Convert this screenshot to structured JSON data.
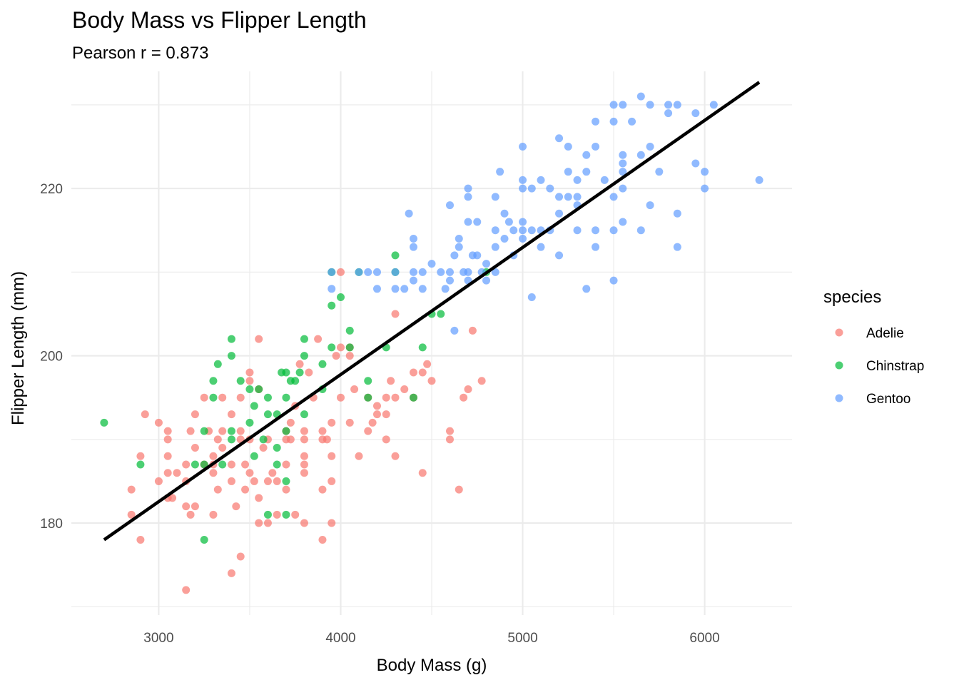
{
  "chart_data": {
    "type": "scatter",
    "title": "Body Mass vs Flipper Length",
    "subtitle": "Pearson r = 0.873",
    "xlabel": "Body Mass (g)",
    "ylabel": "Flipper Length (mm)",
    "xlim": [
      2520,
      6480
    ],
    "ylim": [
      169,
      234
    ],
    "x_ticks": [
      3000,
      4000,
      5000,
      6000
    ],
    "x_tick_labels": [
      "3000",
      "4000",
      "5000",
      "6000"
    ],
    "y_ticks": [
      180,
      200,
      220
    ],
    "y_tick_labels": [
      "180",
      "200",
      "220"
    ],
    "grid": true,
    "legend": {
      "title": "species",
      "position": "right",
      "entries": [
        {
          "name": "Adelie",
          "color": "#F8766D"
        },
        {
          "name": "Chinstrap",
          "color": "#00BA38"
        },
        {
          "name": "Gentoo",
          "color": "#619CFF"
        }
      ]
    },
    "trend_line": {
      "color": "#000000",
      "x": [
        2700,
        6300
      ],
      "y": [
        178.0,
        232.7
      ]
    },
    "series": [
      {
        "name": "Adelie",
        "color": "#F8766D",
        "points": [
          [
            2850,
            181
          ],
          [
            2850,
            184
          ],
          [
            2900,
            178
          ],
          [
            2900,
            188
          ],
          [
            2925,
            193
          ],
          [
            3000,
            185
          ],
          [
            3000,
            192
          ],
          [
            3050,
            183
          ],
          [
            3050,
            186
          ],
          [
            3050,
            188
          ],
          [
            3050,
            190
          ],
          [
            3050,
            191
          ],
          [
            3075,
            183
          ],
          [
            3100,
            186
          ],
          [
            3150,
            172
          ],
          [
            3150,
            182
          ],
          [
            3150,
            185
          ],
          [
            3150,
            187
          ],
          [
            3175,
            181
          ],
          [
            3175,
            191
          ],
          [
            3200,
            182
          ],
          [
            3200,
            189
          ],
          [
            3200,
            193
          ],
          [
            3250,
            187
          ],
          [
            3250,
            195
          ],
          [
            3275,
            191
          ],
          [
            3300,
            181
          ],
          [
            3300,
            186
          ],
          [
            3300,
            187
          ],
          [
            3300,
            188
          ],
          [
            3325,
            184
          ],
          [
            3325,
            190
          ],
          [
            3350,
            195
          ],
          [
            3350,
            189
          ],
          [
            3350,
            191
          ],
          [
            3400,
            174
          ],
          [
            3400,
            185
          ],
          [
            3400,
            187
          ],
          [
            3400,
            193
          ],
          [
            3425,
            182
          ],
          [
            3450,
            176
          ],
          [
            3450,
            190
          ],
          [
            3450,
            195
          ],
          [
            3450,
            191
          ],
          [
            3475,
            184
          ],
          [
            3475,
            187
          ],
          [
            3500,
            186
          ],
          [
            3500,
            190
          ],
          [
            3500,
            198
          ],
          [
            3500,
            197
          ],
          [
            3525,
            185
          ],
          [
            3550,
            180
          ],
          [
            3550,
            183
          ],
          [
            3550,
            202
          ],
          [
            3550,
            196
          ],
          [
            3575,
            189
          ],
          [
            3600,
            180
          ],
          [
            3600,
            185
          ],
          [
            3600,
            190
          ],
          [
            3625,
            186
          ],
          [
            3650,
            185
          ],
          [
            3650,
            181
          ],
          [
            3700,
            187
          ],
          [
            3700,
            190
          ],
          [
            3700,
            184
          ],
          [
            3700,
            191
          ],
          [
            3725,
            190
          ],
          [
            3725,
            192
          ],
          [
            3750,
            181
          ],
          [
            3750,
            194
          ],
          [
            3775,
            199
          ],
          [
            3800,
            180
          ],
          [
            3800,
            186
          ],
          [
            3800,
            187
          ],
          [
            3800,
            188
          ],
          [
            3800,
            190
          ],
          [
            3800,
            191
          ],
          [
            3825,
            198
          ],
          [
            3850,
            195
          ],
          [
            3875,
            202
          ],
          [
            3900,
            178
          ],
          [
            3900,
            184
          ],
          [
            3900,
            190
          ],
          [
            3900,
            191
          ],
          [
            3925,
            190
          ],
          [
            3950,
            180
          ],
          [
            3950,
            185
          ],
          [
            3950,
            188
          ],
          [
            3950,
            192
          ],
          [
            3975,
            200
          ],
          [
            4000,
            195
          ],
          [
            4000,
            201
          ],
          [
            4000,
            210
          ],
          [
            4050,
            192
          ],
          [
            4050,
            200
          ],
          [
            4050,
            201
          ],
          [
            4075,
            196
          ],
          [
            4100,
            188
          ],
          [
            4150,
            191
          ],
          [
            4150,
            195
          ],
          [
            4175,
            192
          ],
          [
            4200,
            194
          ],
          [
            4200,
            193
          ],
          [
            4250,
            190
          ],
          [
            4250,
            195
          ],
          [
            4250,
            193
          ],
          [
            4275,
            197
          ],
          [
            4300,
            188
          ],
          [
            4300,
            195
          ],
          [
            4300,
            205
          ],
          [
            4350,
            196
          ],
          [
            4400,
            195
          ],
          [
            4400,
            198
          ],
          [
            4450,
            186
          ],
          [
            4450,
            198
          ],
          [
            4475,
            199
          ],
          [
            4500,
            197
          ],
          [
            4600,
            190
          ],
          [
            4600,
            191
          ],
          [
            4650,
            184
          ],
          [
            4675,
            195
          ],
          [
            4700,
            196
          ],
          [
            4725,
            203
          ],
          [
            4775,
            197
          ]
        ]
      },
      {
        "name": "Chinstrap",
        "color": "#00BA38",
        "points": [
          [
            2700,
            192
          ],
          [
            2900,
            187
          ],
          [
            3200,
            187
          ],
          [
            3250,
            178
          ],
          [
            3250,
            187
          ],
          [
            3250,
            191
          ],
          [
            3300,
            195
          ],
          [
            3300,
            197
          ],
          [
            3325,
            199
          ],
          [
            3350,
            187
          ],
          [
            3400,
            190
          ],
          [
            3400,
            191
          ],
          [
            3400,
            200
          ],
          [
            3400,
            202
          ],
          [
            3450,
            197
          ],
          [
            3500,
            192
          ],
          [
            3500,
            196
          ],
          [
            3525,
            194
          ],
          [
            3525,
            188
          ],
          [
            3550,
            196
          ],
          [
            3575,
            190
          ],
          [
            3600,
            181
          ],
          [
            3600,
            193
          ],
          [
            3600,
            195
          ],
          [
            3650,
            187
          ],
          [
            3650,
            189
          ],
          [
            3650,
            193
          ],
          [
            3675,
            198
          ],
          [
            3700,
            181
          ],
          [
            3700,
            185
          ],
          [
            3700,
            191
          ],
          [
            3700,
            195
          ],
          [
            3700,
            198
          ],
          [
            3725,
            197
          ],
          [
            3750,
            197
          ],
          [
            3775,
            198
          ],
          [
            3800,
            193
          ],
          [
            3800,
            200
          ],
          [
            3800,
            202
          ],
          [
            3900,
            196
          ],
          [
            3900,
            199
          ],
          [
            3950,
            201
          ],
          [
            3950,
            206
          ],
          [
            3950,
            210
          ],
          [
            4000,
            207
          ],
          [
            4050,
            201
          ],
          [
            4050,
            203
          ],
          [
            4100,
            210
          ],
          [
            4150,
            195
          ],
          [
            4150,
            197
          ],
          [
            4250,
            201
          ],
          [
            4300,
            212
          ],
          [
            4300,
            210
          ],
          [
            4400,
            195
          ],
          [
            4450,
            201
          ],
          [
            4500,
            205
          ],
          [
            4550,
            205
          ],
          [
            4800,
            210
          ]
        ]
      },
      {
        "name": "Gentoo",
        "color": "#619CFF",
        "points": [
          [
            3950,
            208
          ],
          [
            3950,
            210
          ],
          [
            4100,
            210
          ],
          [
            4150,
            210
          ],
          [
            4200,
            208
          ],
          [
            4200,
            210
          ],
          [
            4300,
            208
          ],
          [
            4300,
            210
          ],
          [
            4350,
            208
          ],
          [
            4375,
            217
          ],
          [
            4400,
            209
          ],
          [
            4400,
            210
          ],
          [
            4400,
            213
          ],
          [
            4400,
            214
          ],
          [
            4450,
            208
          ],
          [
            4450,
            210
          ],
          [
            4500,
            211
          ],
          [
            4550,
            210
          ],
          [
            4575,
            208
          ],
          [
            4600,
            209
          ],
          [
            4600,
            210
          ],
          [
            4600,
            218
          ],
          [
            4625,
            203
          ],
          [
            4625,
            212
          ],
          [
            4650,
            213
          ],
          [
            4650,
            214
          ],
          [
            4675,
            210
          ],
          [
            4700,
            209
          ],
          [
            4700,
            210
          ],
          [
            4700,
            216
          ],
          [
            4700,
            219
          ],
          [
            4700,
            220
          ],
          [
            4725,
            212
          ],
          [
            4750,
            212
          ],
          [
            4750,
            216
          ],
          [
            4775,
            210
          ],
          [
            4800,
            209
          ],
          [
            4800,
            211
          ],
          [
            4850,
            210
          ],
          [
            4850,
            213
          ],
          [
            4850,
            215
          ],
          [
            4850,
            219
          ],
          [
            4875,
            222
          ],
          [
            4900,
            214
          ],
          [
            4900,
            217
          ],
          [
            4925,
            216
          ],
          [
            4950,
            212
          ],
          [
            4950,
            215
          ],
          [
            5000,
            214
          ],
          [
            5000,
            215
          ],
          [
            5000,
            216
          ],
          [
            5000,
            220
          ],
          [
            5000,
            221
          ],
          [
            5000,
            225
          ],
          [
            5050,
            207
          ],
          [
            5050,
            215
          ],
          [
            5050,
            220
          ],
          [
            5100,
            213
          ],
          [
            5100,
            215
          ],
          [
            5100,
            221
          ],
          [
            5150,
            215
          ],
          [
            5150,
            220
          ],
          [
            5200,
            212
          ],
          [
            5200,
            217
          ],
          [
            5200,
            219
          ],
          [
            5200,
            226
          ],
          [
            5250,
            219
          ],
          [
            5250,
            222
          ],
          [
            5250,
            225
          ],
          [
            5300,
            215
          ],
          [
            5300,
            218
          ],
          [
            5300,
            219
          ],
          [
            5300,
            221
          ],
          [
            5350,
            208
          ],
          [
            5350,
            222
          ],
          [
            5350,
            224
          ],
          [
            5400,
            213
          ],
          [
            5400,
            215
          ],
          [
            5400,
            225
          ],
          [
            5400,
            228
          ],
          [
            5450,
            221
          ],
          [
            5500,
            209
          ],
          [
            5500,
            215
          ],
          [
            5500,
            219
          ],
          [
            5500,
            228
          ],
          [
            5500,
            230
          ],
          [
            5550,
            216
          ],
          [
            5550,
            220
          ],
          [
            5550,
            222
          ],
          [
            5550,
            223
          ],
          [
            5550,
            224
          ],
          [
            5550,
            230
          ],
          [
            5600,
            228
          ],
          [
            5650,
            215
          ],
          [
            5650,
            224
          ],
          [
            5650,
            231
          ],
          [
            5700,
            218
          ],
          [
            5700,
            225
          ],
          [
            5700,
            230
          ],
          [
            5750,
            222
          ],
          [
            5800,
            229
          ],
          [
            5800,
            230
          ],
          [
            5850,
            213
          ],
          [
            5850,
            217
          ],
          [
            5850,
            230
          ],
          [
            5950,
            223
          ],
          [
            5950,
            229
          ],
          [
            6000,
            220
          ],
          [
            6000,
            222
          ],
          [
            6050,
            230
          ],
          [
            6300,
            221
          ]
        ]
      }
    ]
  }
}
